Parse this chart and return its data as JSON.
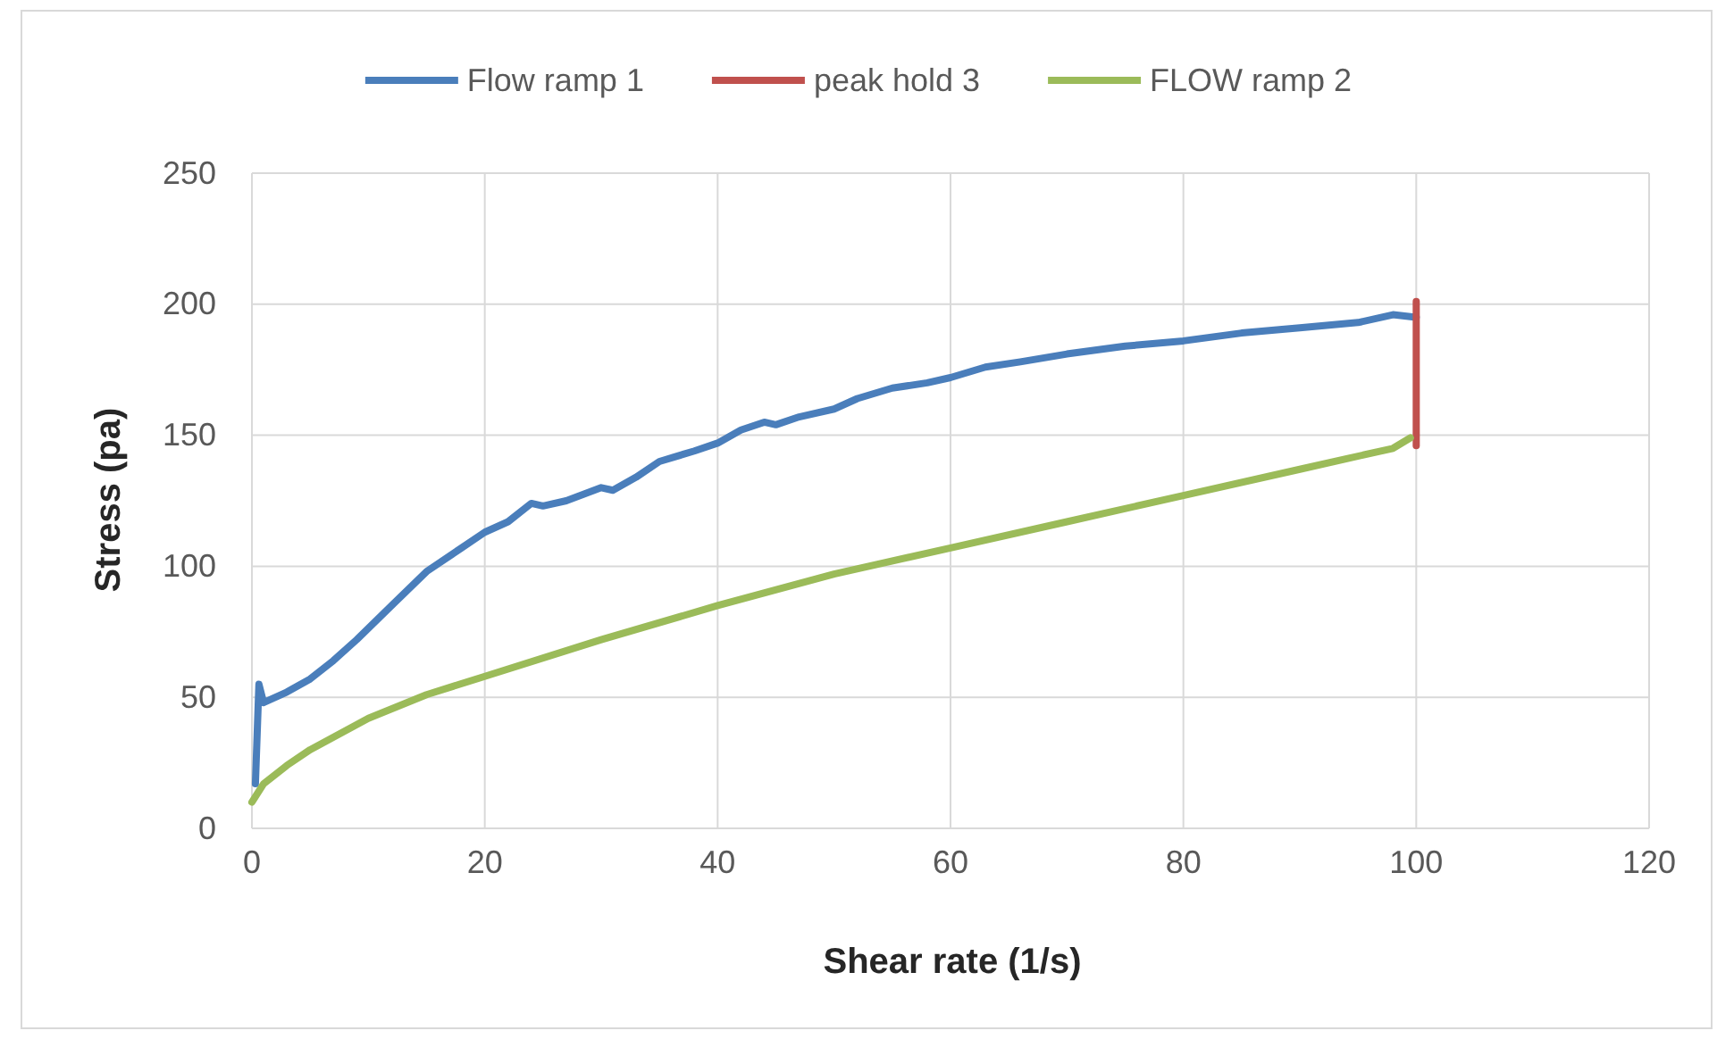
{
  "chart_data": {
    "type": "line",
    "xlabel": "Shear rate (1/s)",
    "ylabel": "Stress (pa)",
    "xlim": [
      0,
      120
    ],
    "xticks": [
      0,
      20,
      40,
      60,
      80,
      100,
      120
    ],
    "ylim": [
      0,
      250
    ],
    "yticks": [
      0,
      50,
      100,
      150,
      200,
      250
    ],
    "grid": true,
    "legend": "top",
    "marker": "none",
    "line_style": "solid",
    "series": [
      {
        "name": "Flow ramp 1",
        "color": "#4a7ebb",
        "x": [
          0.3,
          0.6,
          1,
          3,
          5,
          7,
          9,
          12,
          15,
          18,
          20,
          22,
          24,
          25,
          27,
          30,
          31,
          33,
          35,
          38,
          40,
          42,
          44,
          45,
          47,
          50,
          52,
          55,
          58,
          60,
          63,
          66,
          70,
          75,
          80,
          85,
          90,
          95,
          98,
          100
        ],
        "values": [
          17,
          55,
          48,
          52,
          57,
          64,
          72,
          85,
          98,
          107,
          113,
          117,
          124,
          123,
          125,
          130,
          129,
          134,
          140,
          144,
          147,
          152,
          155,
          154,
          157,
          160,
          164,
          168,
          170,
          172,
          176,
          178,
          181,
          184,
          186,
          189,
          191,
          193,
          196,
          195
        ]
      },
      {
        "name": "peak hold 3",
        "color": "#c0504d",
        "x": [
          100,
          100
        ],
        "values": [
          146,
          201
        ]
      },
      {
        "name": "FLOW ramp 2",
        "color": "#9bbb59",
        "x": [
          0,
          1,
          3,
          5,
          10,
          15,
          20,
          30,
          40,
          50,
          60,
          70,
          80,
          90,
          98,
          99.5
        ],
        "values": [
          10,
          17,
          24,
          30,
          42,
          51,
          58,
          72,
          85,
          97,
          107,
          117,
          127,
          137,
          145,
          149
        ]
      }
    ]
  }
}
